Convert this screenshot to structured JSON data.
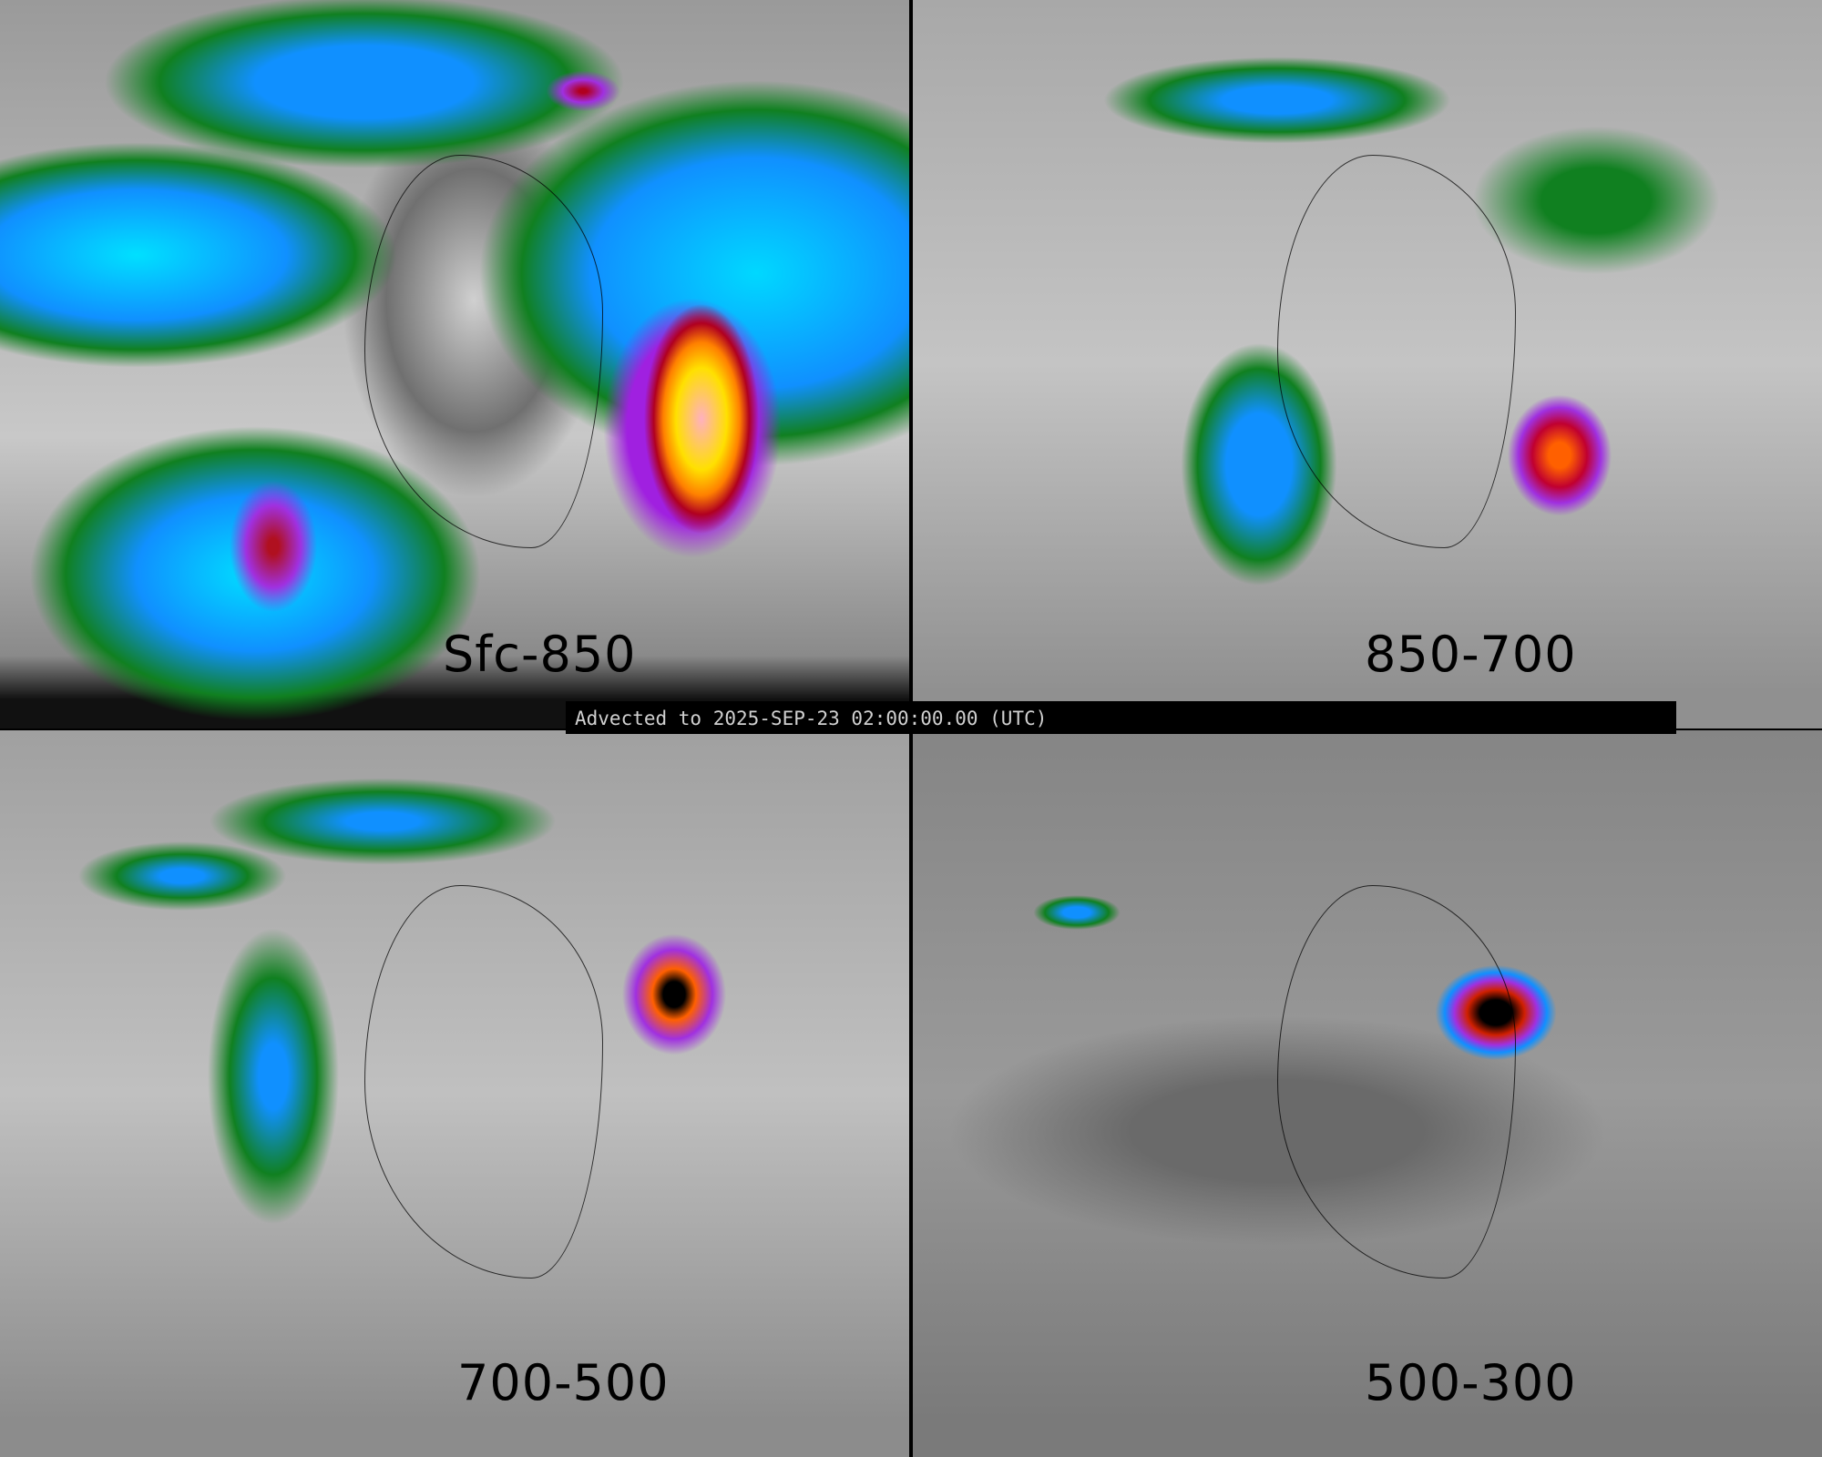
{
  "panels": [
    {
      "label": "Sfc-850"
    },
    {
      "label": "850-700"
    },
    {
      "label": "700-500"
    },
    {
      "label": "500-300"
    }
  ],
  "banner": {
    "text": "Advected to 2025-SEP-23 02:00:00.00 (UTC)"
  },
  "colors": {
    "low": "#808080",
    "green": "#108020",
    "blue": "#1090ff",
    "cyan": "#00e0ff",
    "purple": "#a030e0",
    "red": "#b00020",
    "orange": "#ff8000",
    "yellow": "#ffe000",
    "pink": "#ffb0c0"
  }
}
